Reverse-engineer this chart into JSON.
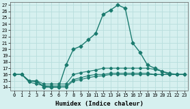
{
  "xlabel": "Humidex (Indice chaleur)",
  "bg_color": "#d6f0ef",
  "grid_color": "#b8dedd",
  "line_color": "#1a7a6e",
  "xlim": [
    -0.5,
    23.5
  ],
  "ylim": [
    13.5,
    27.5
  ],
  "xticks": [
    0,
    1,
    2,
    3,
    4,
    5,
    6,
    7,
    8,
    9,
    10,
    11,
    12,
    13,
    14,
    15,
    16,
    17,
    18,
    19,
    20,
    21,
    22,
    23
  ],
  "yticks": [
    14,
    15,
    16,
    17,
    18,
    19,
    20,
    21,
    22,
    23,
    24,
    25,
    26,
    27
  ],
  "lines": [
    {
      "x": [
        0,
        1,
        2,
        3,
        4,
        5,
        6,
        7,
        8,
        9,
        10,
        11,
        12,
        13,
        14,
        15,
        16,
        17,
        18,
        19,
        20,
        21,
        22,
        23
      ],
      "y": [
        16,
        16,
        15,
        15,
        14,
        14,
        14,
        17.5,
        20,
        20.5,
        21.5,
        22.5,
        25.5,
        26.2,
        27.0,
        26.5,
        21,
        19.5,
        17.5,
        17.0,
        16.5,
        16.0,
        16.0,
        16.0
      ]
    },
    {
      "x": [
        0,
        1,
        2,
        3,
        4,
        5,
        6,
        7,
        8,
        9,
        10,
        11,
        12,
        13,
        14,
        15,
        16,
        17,
        18,
        19,
        20,
        21,
        22,
        23
      ],
      "y": [
        16,
        16,
        15,
        15,
        14.5,
        14.5,
        14.5,
        14.5,
        16.0,
        16.3,
        16.5,
        16.7,
        17.0,
        17.0,
        17.0,
        17.0,
        17.0,
        17.0,
        17.0,
        16.8,
        16.5,
        16.2,
        16.0,
        16.0
      ]
    },
    {
      "x": [
        0,
        1,
        2,
        3,
        4,
        5,
        6,
        7,
        8,
        9,
        10,
        11,
        12,
        13,
        14,
        15,
        16,
        17,
        18,
        19,
        20,
        21,
        22,
        23
      ],
      "y": [
        16,
        16,
        15.0,
        14.8,
        14.2,
        14.2,
        14.2,
        14.2,
        15.2,
        15.5,
        15.8,
        16.0,
        16.0,
        16.2,
        16.2,
        16.2,
        16.2,
        16.2,
        16.2,
        16.0,
        16.0,
        16.0,
        16.0,
        16.0
      ]
    },
    {
      "x": [
        0,
        1,
        2,
        3,
        4,
        5,
        6,
        7,
        8,
        9,
        10,
        11,
        12,
        13,
        14,
        15,
        16,
        17,
        18,
        19,
        20,
        21,
        22,
        23
      ],
      "y": [
        16,
        16,
        14.8,
        14.5,
        14.2,
        14.0,
        14.0,
        14.0,
        15.0,
        15.2,
        15.5,
        15.7,
        15.8,
        16.0,
        16.0,
        16.0,
        16.0,
        16.0,
        16.0,
        16.0,
        16.0,
        16.0,
        16.0,
        16.0
      ]
    }
  ]
}
